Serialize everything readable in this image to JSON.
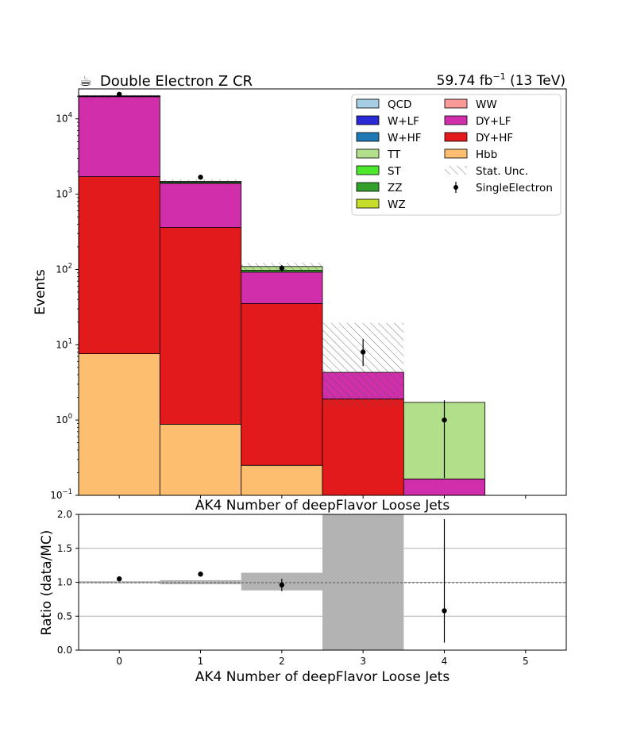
{
  "header": {
    "title_icon": "☕",
    "title": "Double Electron Z CR",
    "lumi_value": "59.74 fb",
    "lumi_exp": "−1",
    "lumi_suffix": " (13 TeV)"
  },
  "chart_data": [
    {
      "type": "bar",
      "stacked": true,
      "log_y": true,
      "xlabel": "AK4 Number of deepFlavor Loose Jets",
      "ylabel": "Events",
      "xlim": [
        -0.5,
        5.5
      ],
      "ylim": [
        0.1,
        25000
      ],
      "x_ticks": [
        "0",
        "1",
        "2",
        "3",
        "4",
        "5"
      ],
      "y_ticks": [
        {
          "value": 0.1,
          "base": "10",
          "exp": "−1"
        },
        {
          "value": 1,
          "base": "10",
          "exp": "0"
        },
        {
          "value": 10,
          "base": "10",
          "exp": "1"
        },
        {
          "value": 100,
          "base": "10",
          "exp": "2"
        },
        {
          "value": 1000,
          "base": "10",
          "exp": "3"
        },
        {
          "value": 10000,
          "base": "10",
          "exp": "4"
        }
      ],
      "bins": [
        0,
        1,
        2,
        3,
        4,
        5
      ],
      "legend_position": "top-right",
      "series": [
        {
          "name": "Hbb",
          "color": "#fdbf6f",
          "values": [
            7.6,
            0.88,
            0.25,
            0,
            0,
            0
          ]
        },
        {
          "name": "DY+HF",
          "color": "#e31a1c",
          "values": [
            1700,
            360,
            35,
            1.9,
            0,
            0
          ]
        },
        {
          "name": "DY+LF",
          "color": "#d12eab",
          "values": [
            18000,
            1030,
            57,
            2.4,
            0.165,
            0
          ]
        },
        {
          "name": "WW",
          "color": "#fb9a99",
          "values": [
            0,
            0,
            0,
            0,
            0,
            0
          ]
        },
        {
          "name": "WZ",
          "color": "#c7dd2b",
          "values": [
            0,
            0,
            0,
            0,
            0,
            0
          ]
        },
        {
          "name": "ZZ",
          "color": "#33a02c",
          "values": [
            400,
            60,
            5,
            0,
            0,
            0
          ]
        },
        {
          "name": "ST",
          "color": "#4be82c",
          "values": [
            0,
            0,
            0,
            0,
            0,
            0
          ]
        },
        {
          "name": "TT",
          "color": "#b2df8a",
          "values": [
            150,
            25,
            12,
            0,
            1.55,
            0
          ]
        },
        {
          "name": "W+HF",
          "color": "#1f78b4",
          "values": [
            0,
            0,
            0,
            0,
            0,
            0
          ]
        },
        {
          "name": "W+LF",
          "color": "#2929d6",
          "values": [
            0,
            0,
            0,
            0,
            0,
            0
          ]
        },
        {
          "name": "QCD",
          "color": "#a6cee3",
          "values": [
            0,
            0,
            0,
            0,
            0,
            0
          ]
        }
      ],
      "stat_unc": [
        {
          "bin": 0,
          "low": 19800,
          "high": 20800
        },
        {
          "bin": 1,
          "low": 1450,
          "high": 1560
        },
        {
          "bin": 2,
          "low": 98,
          "high": 122
        },
        {
          "bin": 3,
          "low": 1.5,
          "high": 19.5
        }
      ],
      "data_points": [
        {
          "x": 0,
          "y": 21200
        },
        {
          "x": 1,
          "y": 1680,
          "err_low": 40,
          "err_high": 40
        },
        {
          "x": 2,
          "y": 104,
          "err_low": 10,
          "err_high": 10
        },
        {
          "x": 3,
          "y": 8,
          "err_low": 2.8,
          "err_high": 3.9
        },
        {
          "x": 4,
          "y": 1,
          "err_low": 0.83,
          "err_high": 0.83
        }
      ],
      "legend": {
        "col1": [
          "QCD",
          "W+LF",
          "W+HF",
          "TT",
          "ST",
          "ZZ",
          "WZ"
        ],
        "col2": [
          "WW",
          "DY+LF",
          "DY+HF",
          "Hbb",
          "Stat. Unc.",
          "SingleElectron"
        ]
      }
    },
    {
      "type": "scatter",
      "xlabel": "AK4 Number of deepFlavor Loose Jets",
      "ylabel": "Ratio (data/MC)",
      "xlim": [
        -0.5,
        5.5
      ],
      "ylim": [
        0,
        2
      ],
      "x_ticks": [
        "0",
        "1",
        "2",
        "3",
        "4",
        "5"
      ],
      "y_ticks": [
        "0.0",
        "0.5",
        "1.0",
        "1.5",
        "2.0"
      ],
      "grid": true,
      "ratio_unc": [
        {
          "bin": 0,
          "low": 0.985,
          "high": 1.015
        },
        {
          "bin": 1,
          "low": 0.97,
          "high": 1.03
        },
        {
          "bin": 2,
          "low": 0.88,
          "high": 1.14
        },
        {
          "bin": 3,
          "low": 0,
          "high": 2
        }
      ],
      "points": [
        {
          "x": 0,
          "y": 1.05
        },
        {
          "x": 1,
          "y": 1.12
        },
        {
          "x": 2,
          "y": 0.96,
          "err_low": 0.09,
          "err_high": 0.09
        },
        {
          "x": 4,
          "y": 0.58,
          "err_low": 0.47,
          "err_high": 1.35
        }
      ]
    }
  ]
}
